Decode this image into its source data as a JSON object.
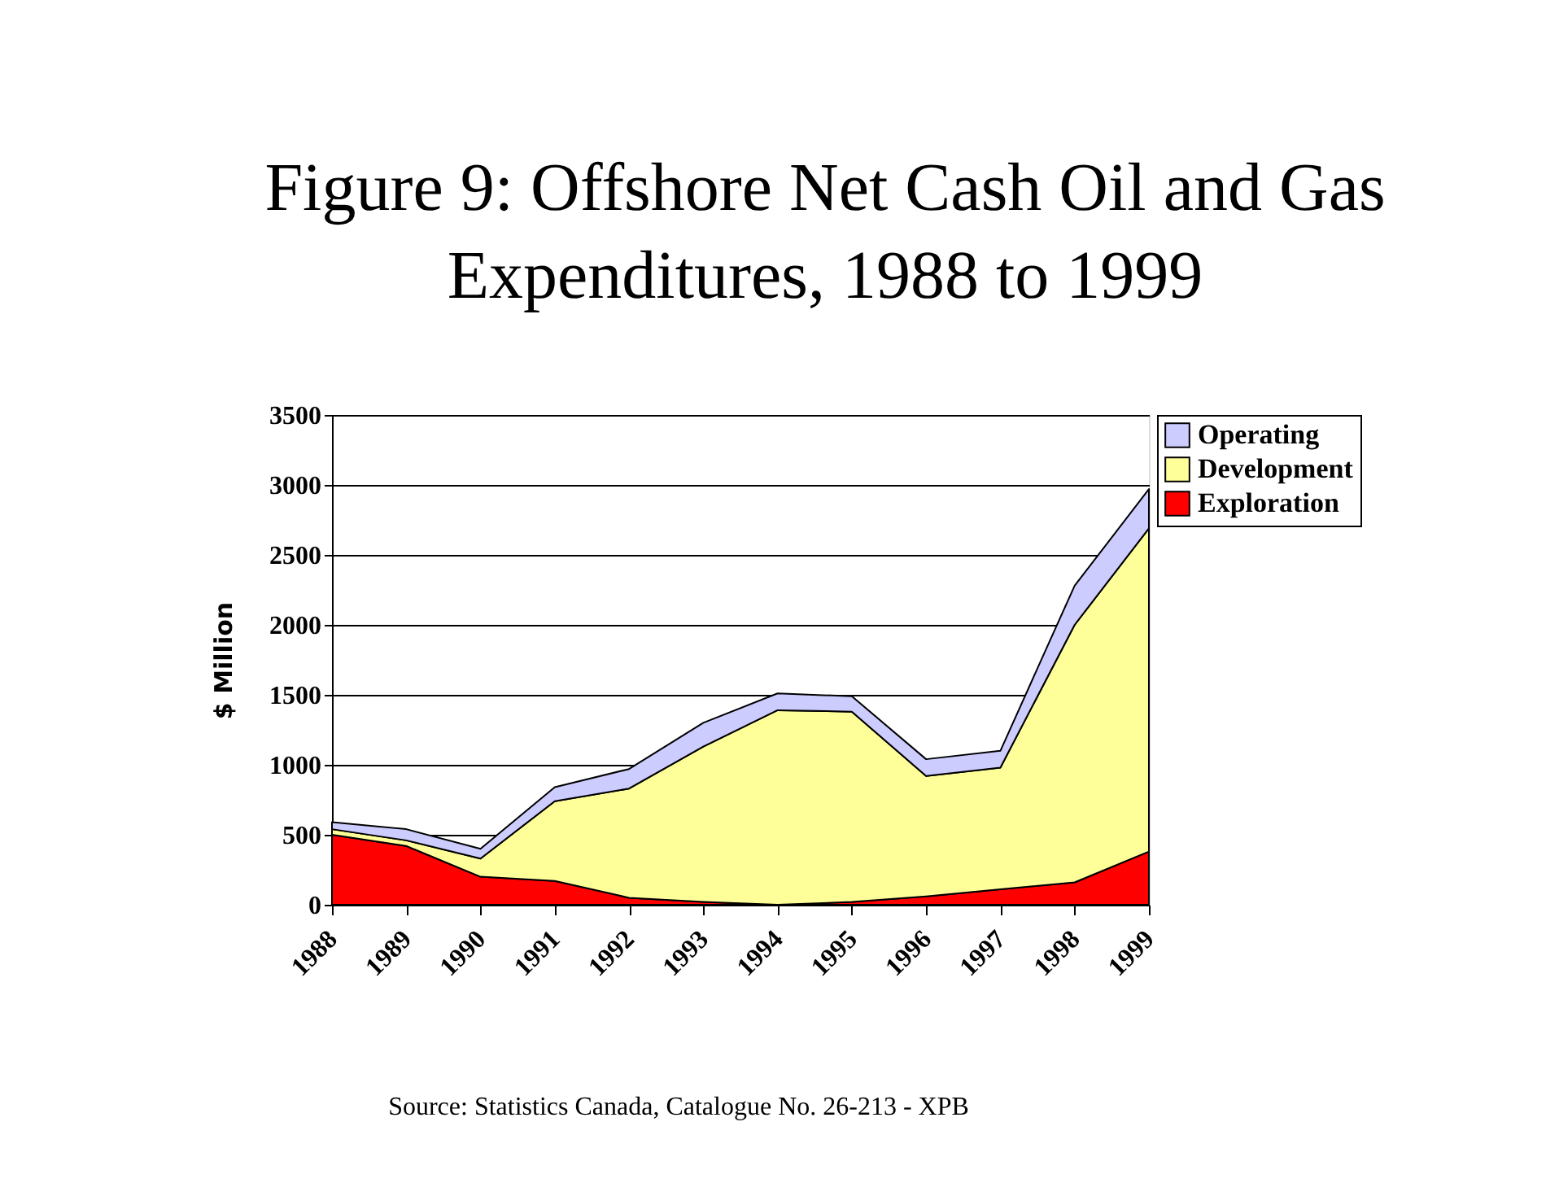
{
  "chart_data": {
    "type": "area",
    "title": [
      "Figure 9: Offshore Net Cash Oil and Gas",
      "Expenditures, 1988 to 1999"
    ],
    "ylabel": "$ Million",
    "categories": [
      "1988",
      "1989",
      "1990",
      "1991",
      "1992",
      "1993",
      "1994",
      "1995",
      "1996",
      "1997",
      "1998",
      "1999"
    ],
    "stacked": true,
    "series": [
      {
        "name": "Exploration",
        "color": "#ff0000",
        "values": [
          500,
          420,
          200,
          170,
          50,
          20,
          0,
          20,
          60,
          110,
          160,
          380
        ]
      },
      {
        "name": "Development",
        "color": "#ffff99",
        "values": [
          40,
          40,
          130,
          570,
          780,
          1110,
          1390,
          1360,
          860,
          870,
          1840,
          2310
        ]
      },
      {
        "name": "Operating",
        "color": "#ccccff",
        "values": [
          50,
          80,
          70,
          100,
          140,
          170,
          120,
          110,
          120,
          120,
          280,
          280
        ]
      }
    ],
    "ylim": [
      0,
      3500
    ],
    "yticks": [
      0,
      500,
      1000,
      1500,
      2000,
      2500,
      3000,
      3500
    ],
    "grid": "y",
    "legend": "right",
    "annotations": [
      "Source: Statistics Canada, Catalogue No. 26-213 - XPB"
    ]
  }
}
